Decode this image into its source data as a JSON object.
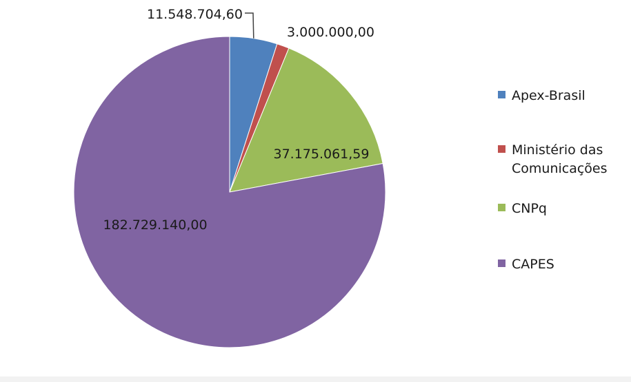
{
  "chart_data": {
    "type": "pie",
    "categories": [
      "Apex-Brasil",
      "Ministério das Comunicações",
      "CNPq",
      "CAPES"
    ],
    "values": [
      11548704.6,
      3000000.0,
      37175061.59,
      182729140.0
    ],
    "value_labels": [
      "11.548.704,60",
      "3.000.000,00",
      "37.175.061,59",
      "182.729.140,00"
    ],
    "colors": [
      "#4f81bd",
      "#c0504d",
      "#9bbb59",
      "#8064a2"
    ],
    "legend_position": "right",
    "legend": [
      {
        "lines": [
          "Apex-Brasil"
        ]
      },
      {
        "lines": [
          "Ministério das",
          "Comunicações"
        ]
      },
      {
        "lines": [
          "CNPq"
        ]
      },
      {
        "lines": [
          "CAPES"
        ]
      }
    ]
  }
}
